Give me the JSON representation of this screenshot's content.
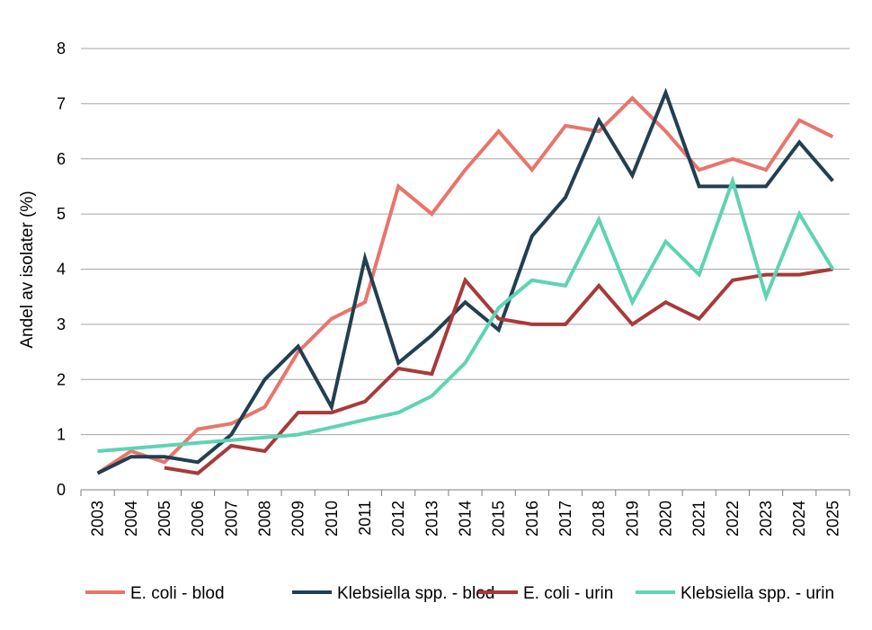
{
  "chart_data": {
    "type": "line",
    "title": "",
    "xlabel": "",
    "ylabel": "Andel av isolater (%)",
    "ylim": [
      0,
      8
    ],
    "yticks": [
      0,
      1,
      2,
      3,
      4,
      5,
      6,
      7,
      8
    ],
    "grid": "horizontal",
    "legend_position": "bottom",
    "x": [
      "2003",
      "2004",
      "2005",
      "2006",
      "2007",
      "2008",
      "2009",
      "2010",
      "2011",
      "2012",
      "2013",
      "2014",
      "2015",
      "2016",
      "2017",
      "2018",
      "2019",
      "2020",
      "2021",
      "2022",
      "2023",
      "2024",
      "2025"
    ],
    "series": [
      {
        "name": "E. coli - blod",
        "color": "#E8756B",
        "values": [
          0.3,
          0.7,
          0.5,
          1.1,
          1.2,
          1.5,
          2.5,
          3.1,
          3.4,
          5.5,
          5.0,
          5.8,
          6.5,
          5.8,
          6.6,
          6.5,
          7.1,
          6.5,
          5.8,
          6.0,
          5.8,
          6.7,
          6.4
        ]
      },
      {
        "name": "Klebsiella spp. - blod",
        "color": "#233F52",
        "values": [
          0.3,
          0.6,
          0.6,
          0.5,
          1.0,
          2.0,
          2.6,
          1.5,
          4.2,
          2.3,
          2.8,
          3.4,
          2.9,
          4.6,
          5.3,
          6.7,
          5.7,
          7.2,
          5.5,
          5.5,
          5.5,
          6.3,
          5.6
        ]
      },
      {
        "name": "E. coli - urin",
        "color": "#A83A3A",
        "values": [
          null,
          null,
          0.4,
          0.3,
          0.8,
          0.7,
          1.4,
          1.4,
          1.6,
          2.2,
          2.1,
          3.8,
          3.1,
          3.0,
          3.0,
          3.7,
          3.0,
          3.4,
          3.1,
          3.8,
          3.9,
          3.9,
          4.0
        ]
      },
      {
        "name": "Klebsiella spp. - urin",
        "color": "#5FD3B3",
        "values": [
          0.7,
          0.75,
          0.8,
          0.85,
          0.9,
          0.95,
          1.0,
          1.13,
          1.27,
          1.4,
          1.7,
          2.3,
          3.3,
          3.8,
          3.7,
          4.9,
          3.4,
          4.5,
          3.9,
          5.6,
          3.5,
          5.0,
          4.0
        ]
      }
    ]
  }
}
